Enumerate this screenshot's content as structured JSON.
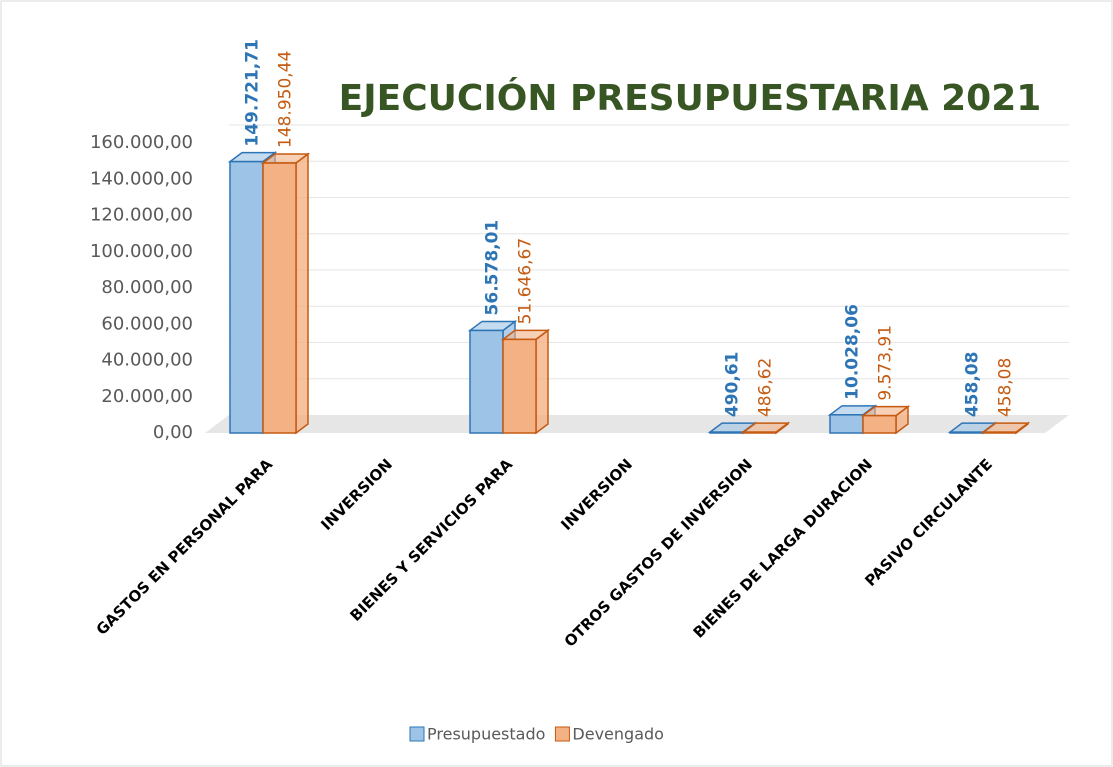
{
  "chart_data": {
    "type": "bar3d",
    "title": "EJECUCIÓN PRESUPUESTARIA 2021",
    "categories": [
      "GASTOS EN PERSONAL PARA",
      "INVERSION",
      "BIENES Y SERVICIOS PARA",
      "INVERSION",
      "OTROS GASTOS DE INVERSION",
      "BIENES DE LARGA DURACION",
      "PASIVO CIRCULANTE"
    ],
    "series": [
      {
        "name": "Presupuestado",
        "color": "#2e75b6",
        "fill": "#9dc3e6",
        "values": [
          149721.71,
          null,
          56578.01,
          null,
          490.61,
          10028.06,
          458.08
        ],
        "value_labels": [
          "149.721,71",
          null,
          "56.578,01",
          null,
          "490,61",
          "10.028,06",
          "458,08"
        ]
      },
      {
        "name": "Devengado",
        "color": "#c55a11",
        "fill": "#f4b183",
        "values": [
          148950.44,
          null,
          51646.67,
          null,
          486.62,
          9573.91,
          458.08
        ],
        "value_labels": [
          "148.950,44",
          null,
          "51.646,67",
          null,
          "486,62",
          "9.573,91",
          "458,08"
        ]
      }
    ],
    "ylim": [
      0,
      160000
    ],
    "yticks": [
      {
        "value": 0,
        "label": "0,00"
      },
      {
        "value": 20000,
        "label": "20.000,00"
      },
      {
        "value": 40000,
        "label": "40.000,00"
      },
      {
        "value": 60000,
        "label": "60.000,00"
      },
      {
        "value": 80000,
        "label": "80.000,00"
      },
      {
        "value": 100000,
        "label": "100.000,00"
      },
      {
        "value": 120000,
        "label": "120.000,00"
      },
      {
        "value": 140000,
        "label": "140.000,00"
      },
      {
        "value": 160000,
        "label": "160.000,00"
      }
    ],
    "grid": true,
    "legend": "bottom"
  }
}
